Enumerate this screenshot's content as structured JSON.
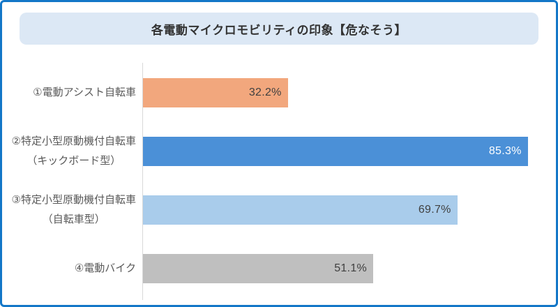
{
  "chart_data": {
    "type": "bar",
    "orientation": "horizontal",
    "title": "各電動マイクロモビリティの印象【危なそう】",
    "unit": "%",
    "xlim": [
      0,
      87
    ],
    "grid": false,
    "legend": null,
    "categories": [
      "①電動アシスト自転車",
      "②特定小型原動機付自転車\n（キックボード型）",
      "③特定小型原動機付自転車\n（自転車型）",
      "④電動バイク"
    ],
    "values": [
      32.2,
      85.3,
      69.7,
      51.1
    ],
    "bars": [
      {
        "category": "①電動アシスト自転車",
        "value": 32.2,
        "value_label": "32.2%",
        "color": "#F2A77D",
        "value_label_color": "#404040"
      },
      {
        "category": "②特定小型原動機付自転車\n（キックボード型）",
        "value": 85.3,
        "value_label": "85.3%",
        "color": "#4B90D7",
        "value_label_color": "#FFFFFF"
      },
      {
        "category": "③特定小型原動機付自転車\n（自転車型）",
        "value": 69.7,
        "value_label": "69.7%",
        "color": "#A9CCEB",
        "value_label_color": "#404040"
      },
      {
        "category": "④電動バイク",
        "value": 51.1,
        "value_label": "51.1%",
        "color": "#BFBFBF",
        "value_label_color": "#404040"
      }
    ],
    "theme": {
      "frame_border": "#1377C8",
      "title_background": "#DCE8F5",
      "title_text": "#333333",
      "axis_line": "#D9D9D9",
      "category_text": "#595959"
    }
  }
}
